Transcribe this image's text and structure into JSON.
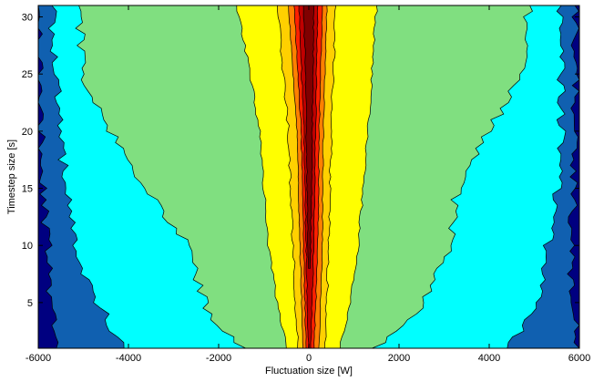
{
  "chart_data": {
    "type": "contour",
    "title": "",
    "xlabel": "Fluctuation size [W]",
    "ylabel": "Timestep size [s]",
    "xlim": [
      -6000,
      6000
    ],
    "ylim": [
      1,
      31
    ],
    "x_ticks": [
      -6000,
      -4000,
      -2000,
      0,
      2000,
      4000,
      6000
    ],
    "y_ticks": [
      5,
      10,
      15,
      20,
      25,
      30
    ],
    "x_tick_labels": [
      "-6000",
      "-4000",
      "-2000",
      "0",
      "2000",
      "4000",
      "6000"
    ],
    "y_tick_labels": [
      "5",
      "10",
      "15",
      "20",
      "25",
      "30"
    ],
    "colormap": "jet",
    "background_color": "#000080",
    "level_colors": [
      "#1060b0",
      "#00ffff",
      "#80df80",
      "#ffff00",
      "#ffd000",
      "#ff8000",
      "#ff2000",
      "#c00000",
      "#800000"
    ],
    "levels": [
      {
        "name": "level-1-blue",
        "color": "#1060b0",
        "bounds": [
          {
            "y": 1,
            "l": -5600,
            "r": 6000
          },
          {
            "y": 5,
            "l": -5700,
            "r": 5800
          },
          {
            "y": 10,
            "l": -5800,
            "r": 5800
          },
          {
            "y": 15,
            "l": -5900,
            "r": 5900
          },
          {
            "y": 20,
            "l": -5950,
            "r": 5900
          },
          {
            "y": 25,
            "l": -6000,
            "r": 5900
          },
          {
            "y": 31,
            "l": -6000,
            "r": 5900
          }
        ]
      },
      {
        "name": "level-2-cyan",
        "color": "#00ffff",
        "bounds": [
          {
            "y": 1,
            "l": -4100,
            "r": 4400
          },
          {
            "y": 3,
            "l": -4400,
            "r": 4800
          },
          {
            "y": 6,
            "l": -4800,
            "r": 5100
          },
          {
            "y": 10,
            "l": -5200,
            "r": 5300
          },
          {
            "y": 15,
            "l": -5400,
            "r": 5500
          },
          {
            "y": 20,
            "l": -5500,
            "r": 5600
          },
          {
            "y": 25,
            "l": -5600,
            "r": 5600
          },
          {
            "y": 31,
            "l": -5700,
            "r": 5600
          }
        ]
      },
      {
        "name": "level-3-green",
        "color": "#80df80",
        "bounds": [
          {
            "y": 1,
            "l": -1400,
            "r": 1400
          },
          {
            "y": 3,
            "l": -2100,
            "r": 2200
          },
          {
            "y": 6,
            "l": -2400,
            "r": 2700
          },
          {
            "y": 10,
            "l": -2700,
            "r": 3100
          },
          {
            "y": 15,
            "l": -3600,
            "r": 3300
          },
          {
            "y": 20,
            "l": -4400,
            "r": 4000
          },
          {
            "y": 25,
            "l": -5000,
            "r": 4700
          },
          {
            "y": 31,
            "l": -5100,
            "r": 4900
          }
        ]
      },
      {
        "name": "level-4-yellow",
        "color": "#ffff00",
        "bounds": [
          {
            "y": 1,
            "l": -500,
            "r": 700
          },
          {
            "y": 5,
            "l": -700,
            "r": 900
          },
          {
            "y": 10,
            "l": -900,
            "r": 1100
          },
          {
            "y": 15,
            "l": -1000,
            "r": 1200
          },
          {
            "y": 20,
            "l": -1100,
            "r": 1300
          },
          {
            "y": 25,
            "l": -1300,
            "r": 1400
          },
          {
            "y": 31,
            "l": -1600,
            "r": 1500
          }
        ]
      },
      {
        "name": "level-5-gold",
        "color": "#ffd000",
        "bounds": [
          {
            "y": 1,
            "l": -250,
            "r": 350
          },
          {
            "y": 10,
            "l": -350,
            "r": 450
          },
          {
            "y": 20,
            "l": -450,
            "r": 500
          },
          {
            "y": 31,
            "l": -700,
            "r": 600
          }
        ]
      },
      {
        "name": "level-6-orange",
        "color": "#ff8000",
        "bounds": [
          {
            "y": 1,
            "l": -130,
            "r": 220
          },
          {
            "y": 10,
            "l": -200,
            "r": 300
          },
          {
            "y": 20,
            "l": -260,
            "r": 320
          },
          {
            "y": 31,
            "l": -450,
            "r": 400
          }
        ]
      },
      {
        "name": "level-7-red",
        "color": "#ff2000",
        "bounds": [
          {
            "y": 1,
            "l": -60,
            "r": 120
          },
          {
            "y": 10,
            "l": -120,
            "r": 200
          },
          {
            "y": 20,
            "l": -170,
            "r": 230
          },
          {
            "y": 31,
            "l": -330,
            "r": 300
          }
        ]
      },
      {
        "name": "level-8-darkred",
        "color": "#c00000",
        "bounds": [
          {
            "y": 1,
            "l": -10,
            "r": 40
          },
          {
            "y": 10,
            "l": -60,
            "r": 110
          },
          {
            "y": 20,
            "l": -110,
            "r": 150
          },
          {
            "y": 31,
            "l": -220,
            "r": 200
          }
        ]
      },
      {
        "name": "level-9-maroon",
        "color": "#800000",
        "bounds": [
          {
            "y": 8,
            "l": -10,
            "r": 30
          },
          {
            "y": 15,
            "l": -40,
            "r": 60
          },
          {
            "y": 25,
            "l": -70,
            "r": 90
          },
          {
            "y": 31,
            "l": -120,
            "r": 110
          }
        ]
      }
    ]
  }
}
